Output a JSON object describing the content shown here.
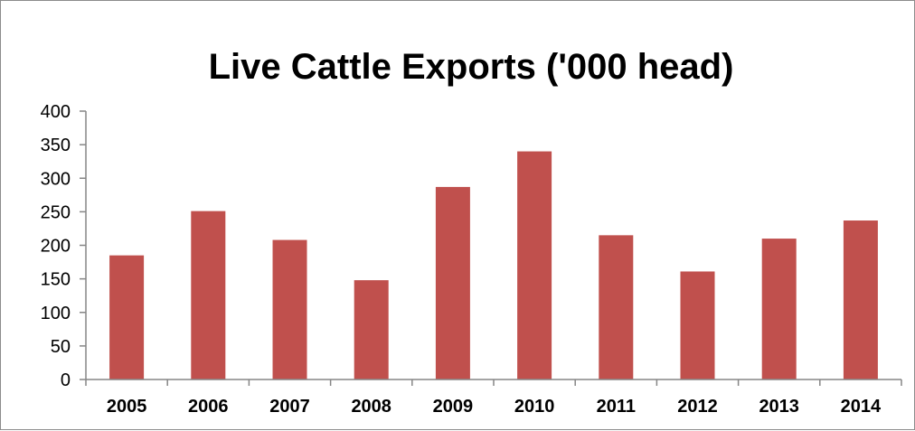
{
  "chart_data": {
    "type": "bar",
    "title": "Live Cattle Exports ('000 head)",
    "xlabel": "",
    "ylabel": "",
    "categories": [
      "2005",
      "2006",
      "2007",
      "2008",
      "2009",
      "2010",
      "2011",
      "2012",
      "2013",
      "2014"
    ],
    "values": [
      185,
      251,
      208,
      148,
      287,
      340,
      215,
      161,
      210,
      237
    ],
    "ylim": [
      0,
      400
    ],
    "yticks": [
      0,
      50,
      100,
      150,
      200,
      250,
      300,
      350,
      400
    ],
    "grid": false,
    "legend": "none",
    "bar_color": "#c0504d",
    "axis_color": "#868686"
  }
}
